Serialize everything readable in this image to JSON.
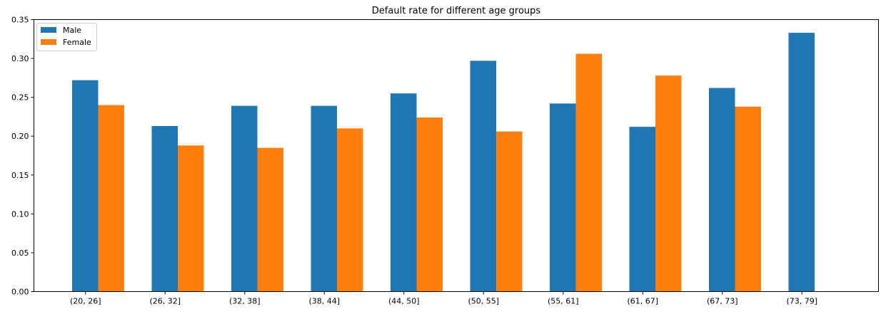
{
  "chart_data": {
    "type": "bar",
    "title": "Default rate for different age groups",
    "xlabel": "",
    "ylabel": "",
    "categories": [
      "(20, 26]",
      "(26, 32]",
      "(32, 38]",
      "(38, 44]",
      "(44, 50]",
      "(50, 55]",
      "(55, 61]",
      "(61, 67]",
      "(67, 73]",
      "(73, 79]"
    ],
    "series": [
      {
        "name": "Male",
        "color": "#1f77b4",
        "values": [
          0.272,
          0.213,
          0.239,
          0.239,
          0.255,
          0.297,
          0.242,
          0.212,
          0.262,
          0.333
        ]
      },
      {
        "name": "Female",
        "color": "#ff7f0e",
        "values": [
          0.24,
          0.188,
          0.185,
          0.21,
          0.224,
          0.206,
          0.306,
          0.278,
          0.238,
          null
        ]
      }
    ],
    "ylim": [
      0,
      0.35
    ],
    "yticks": [
      "0.00",
      "0.05",
      "0.10",
      "0.15",
      "0.20",
      "0.25",
      "0.30",
      "0.35"
    ],
    "grid": false,
    "legend_position": "top-left"
  }
}
